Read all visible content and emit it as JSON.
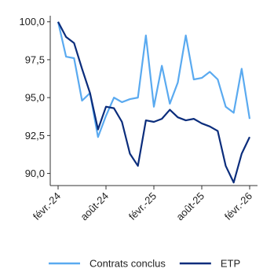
{
  "chart_data": {
    "type": "line",
    "categories": [
      "févr.-24",
      null,
      null,
      null,
      null,
      null,
      "août-24",
      null,
      null,
      null,
      null,
      null,
      "févr.-25",
      null,
      null,
      null,
      null,
      null,
      "août-25",
      null,
      null,
      null,
      null,
      null,
      "févr.-26"
    ],
    "series": [
      {
        "name": "Contrats conclus",
        "color": "#5aaaf0",
        "values": [
          100,
          97.7,
          97.6,
          94.8,
          95.3,
          92.4,
          93.8,
          95.0,
          94.7,
          94.9,
          95.0,
          99.1,
          94.4,
          97.1,
          94.6,
          96.0,
          99.1,
          96.2,
          96.3,
          96.7,
          96.2,
          94.4,
          94.0,
          96.9,
          93.6
        ]
      },
      {
        "name": "ETP",
        "color": "#0b2d7c",
        "values": [
          100,
          99.0,
          98.6,
          96.9,
          95.3,
          92.9,
          94.4,
          94.3,
          93.4,
          91.3,
          90.5,
          93.5,
          93.4,
          93.6,
          94.2,
          93.7,
          93.5,
          93.6,
          93.3,
          93.1,
          92.8,
          90.5,
          89.4,
          91.3,
          92.4
        ]
      }
    ],
    "ylim": [
      89.2,
      100.4
    ],
    "yticks": [
      {
        "value": 90,
        "label": "90,0"
      },
      {
        "value": 92.5,
        "label": "92,5"
      },
      {
        "value": 95,
        "label": "95,0"
      },
      {
        "value": 97.5,
        "label": "97,5"
      },
      {
        "value": 100,
        "label": "100,0"
      }
    ],
    "legend": "bottom"
  }
}
